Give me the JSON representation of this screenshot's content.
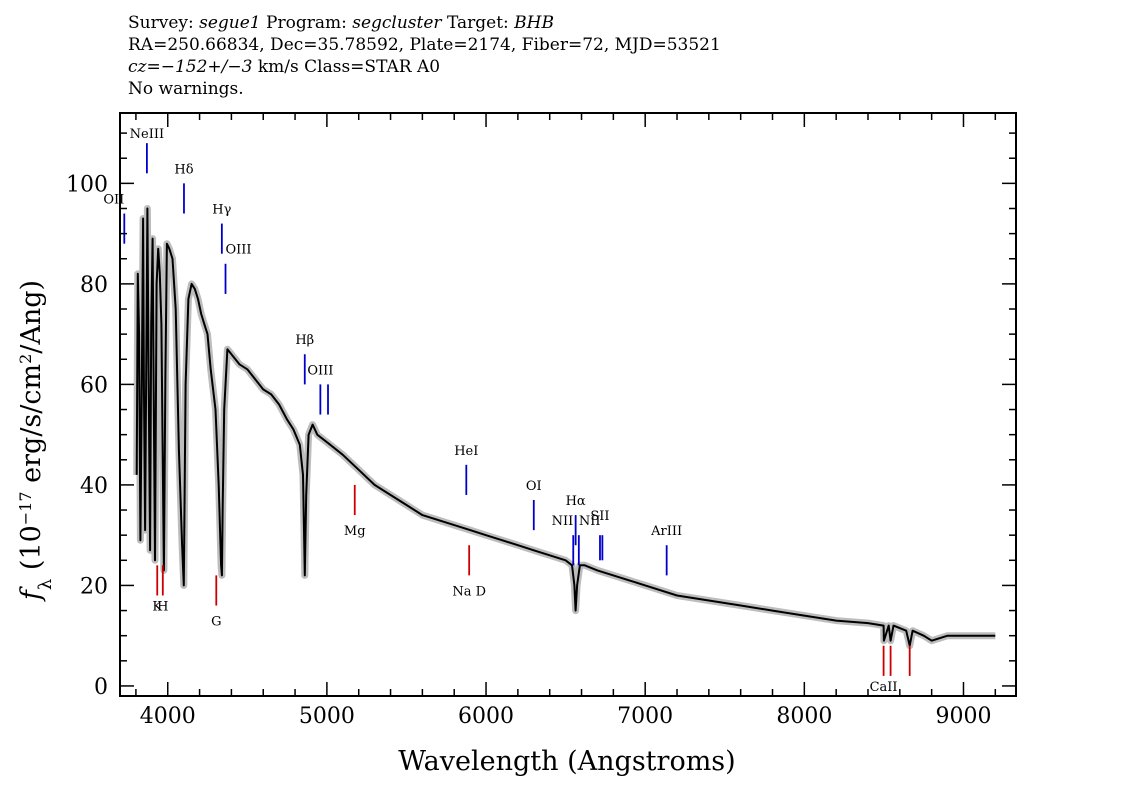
{
  "header": {
    "survey_label": "Survey:",
    "survey": "segue1",
    "program_label": "Program:",
    "program": "segcluster",
    "target_label": "Target:",
    "target": "BHB",
    "line2": "RA=250.66834, Dec=35.78592, Plate=2174, Fiber=72, MJD=53521",
    "cz_label": "cz=",
    "cz_value": "−152+/−3",
    "cz_rest": " km/s Class=STAR A0",
    "line4": "No warnings."
  },
  "colors": {
    "spectrum": "#000000",
    "error": "#bdbdbd",
    "emission": "#0000cc",
    "absorption": "#cc0000"
  },
  "chart_data": {
    "type": "line",
    "xlabel": "Wavelength (Angstroms)",
    "ylabel_prefix": "f",
    "ylabel_sub": "λ",
    "ylabel_mid": " (10",
    "ylabel_exp": "−17",
    "ylabel_end": " erg/s/cm",
    "ylabel_exp2": "2",
    "ylabel_tail": "/Ang)",
    "xlim": [
      3700,
      9330
    ],
    "ylim": [
      -2,
      114
    ],
    "xticks": [
      4000,
      5000,
      6000,
      7000,
      8000,
      9000
    ],
    "yticks": [
      0,
      20,
      40,
      60,
      80,
      100
    ],
    "series": [
      {
        "x": [
          3805,
          3812,
          3820,
          3828,
          3836,
          3845,
          3850,
          3858,
          3866,
          3872,
          3880,
          3889,
          3896,
          3905,
          3912,
          3920,
          3930,
          3940,
          3950,
          3960,
          3970,
          3976,
          3985,
          3995,
          4010,
          4030,
          4050,
          4070,
          4090,
          4101,
          4112,
          4130,
          4150,
          4170,
          4190,
          4210,
          4230,
          4250,
          4270,
          4300,
          4320,
          4335,
          4340,
          4345,
          4355,
          4375,
          4400,
          4450,
          4500,
          4550,
          4600,
          4650,
          4700,
          4750,
          4790,
          4830,
          4850,
          4861,
          4870,
          4885,
          4910,
          4940,
          4980,
          5020,
          5100,
          5200,
          5300,
          5400,
          5500,
          5600,
          5700,
          5800,
          5900,
          6000,
          6100,
          6200,
          6300,
          6400,
          6500,
          6540,
          6555,
          6563,
          6572,
          6590,
          6620,
          6700,
          6800,
          6900,
          7000,
          7200,
          7400,
          7600,
          7800,
          8000,
          8200,
          8400,
          8498,
          8500,
          8530,
          8542,
          8560,
          8640,
          8662,
          8680,
          8750,
          8800,
          8900,
          9000,
          9100,
          9200
        ],
        "y": [
          42,
          82,
          70,
          29,
          55,
          93,
          60,
          31,
          68,
          95,
          62,
          27,
          72,
          89,
          58,
          25,
          80,
          87,
          82,
          72,
          40,
          23,
          62,
          88,
          87,
          85,
          75,
          47,
          28,
          20,
          60,
          77,
          80,
          79,
          77,
          74,
          72,
          70,
          63,
          55,
          40,
          24,
          22,
          36,
          55,
          67,
          66,
          64,
          63,
          61,
          59,
          58,
          56,
          53,
          51,
          48,
          42,
          22,
          38,
          50,
          52,
          50,
          49,
          48,
          46,
          43,
          40,
          38,
          36,
          34,
          33,
          32,
          31,
          30,
          29,
          28,
          27,
          26,
          25,
          24,
          20,
          15,
          20,
          24,
          24,
          23,
          22,
          21,
          20,
          18,
          17,
          16,
          15,
          14,
          13,
          12.5,
          12,
          9,
          12,
          9,
          12,
          11,
          8,
          11,
          10,
          9,
          10,
          10,
          10,
          10
        ]
      }
    ],
    "lines": [
      {
        "label": "OII",
        "x": 3727,
        "y1": 94,
        "y2": 88,
        "kind": "emission",
        "label_y": 96,
        "anchor": "end"
      },
      {
        "label": "NeIII",
        "x": 3869,
        "y1": 108,
        "y2": 102,
        "kind": "emission",
        "label_y": 109
      },
      {
        "label": "Hδ",
        "x": 4102,
        "y1": 100,
        "y2": 94,
        "kind": "emission",
        "label_y": 102
      },
      {
        "label": "Hγ",
        "x": 4340,
        "y1": 92,
        "y2": 86,
        "kind": "emission",
        "label_y": 94
      },
      {
        "label": "OIII",
        "x": 4363,
        "y1": 84,
        "y2": 78,
        "kind": "emission",
        "label_y": 86,
        "anchor": "start"
      },
      {
        "label": "Hβ",
        "x": 4861,
        "y1": 66,
        "y2": 60,
        "kind": "emission",
        "label_y": 68
      },
      {
        "label": "OIII",
        "x": 4959,
        "y1": 60,
        "y2": 54,
        "kind": "emission",
        "label_y": 62
      },
      {
        "label": "",
        "x": 5007,
        "y1": 60,
        "y2": 54,
        "kind": "emission"
      },
      {
        "label": "HeI",
        "x": 5876,
        "y1": 44,
        "y2": 38,
        "kind": "emission",
        "label_y": 46
      },
      {
        "label": "OI",
        "x": 6300,
        "y1": 37,
        "y2": 31,
        "kind": "emission",
        "label_y": 39
      },
      {
        "label": "NII",
        "x": 6548,
        "y1": 30,
        "y2": 24,
        "kind": "emission",
        "label_y": 32,
        "anchor": "end"
      },
      {
        "label": "Hα",
        "x": 6563,
        "y1": 34,
        "y2": 28,
        "kind": "emission",
        "label_y": 36
      },
      {
        "label": "NII",
        "x": 6583,
        "y1": 30,
        "y2": 24,
        "kind": "emission",
        "label_y": 32,
        "anchor": "start"
      },
      {
        "label": "SII",
        "x": 6716,
        "y1": 30,
        "y2": 25,
        "kind": "emission",
        "label_y": 33
      },
      {
        "label": "",
        "x": 6731,
        "y1": 30,
        "y2": 25,
        "kind": "emission"
      },
      {
        "label": "ArIII",
        "x": 7135,
        "y1": 28,
        "y2": 22,
        "kind": "emission",
        "label_y": 30
      },
      {
        "label": "K",
        "x": 3934,
        "y1": 24,
        "y2": 18,
        "kind": "absorption",
        "label_y": 15
      },
      {
        "label": "H",
        "x": 3969,
        "y1": 24,
        "y2": 18,
        "kind": "absorption",
        "label_y": 15
      },
      {
        "label": "G",
        "x": 4305,
        "y1": 22,
        "y2": 16,
        "kind": "absorption",
        "label_y": 12
      },
      {
        "label": "Mg",
        "x": 5175,
        "y1": 40,
        "y2": 34,
        "kind": "absorption",
        "label_y": 30
      },
      {
        "label": "Na D",
        "x": 5894,
        "y1": 28,
        "y2": 22,
        "kind": "absorption",
        "label_y": 18
      },
      {
        "label": "CaII",
        "x": 8498,
        "y1": 8,
        "y2": 2,
        "kind": "absorption",
        "label_y": -1
      },
      {
        "label": "",
        "x": 8542,
        "y1": 8,
        "y2": 2,
        "kind": "absorption"
      },
      {
        "label": "",
        "x": 8662,
        "y1": 8,
        "y2": 2,
        "kind": "absorption"
      }
    ]
  }
}
